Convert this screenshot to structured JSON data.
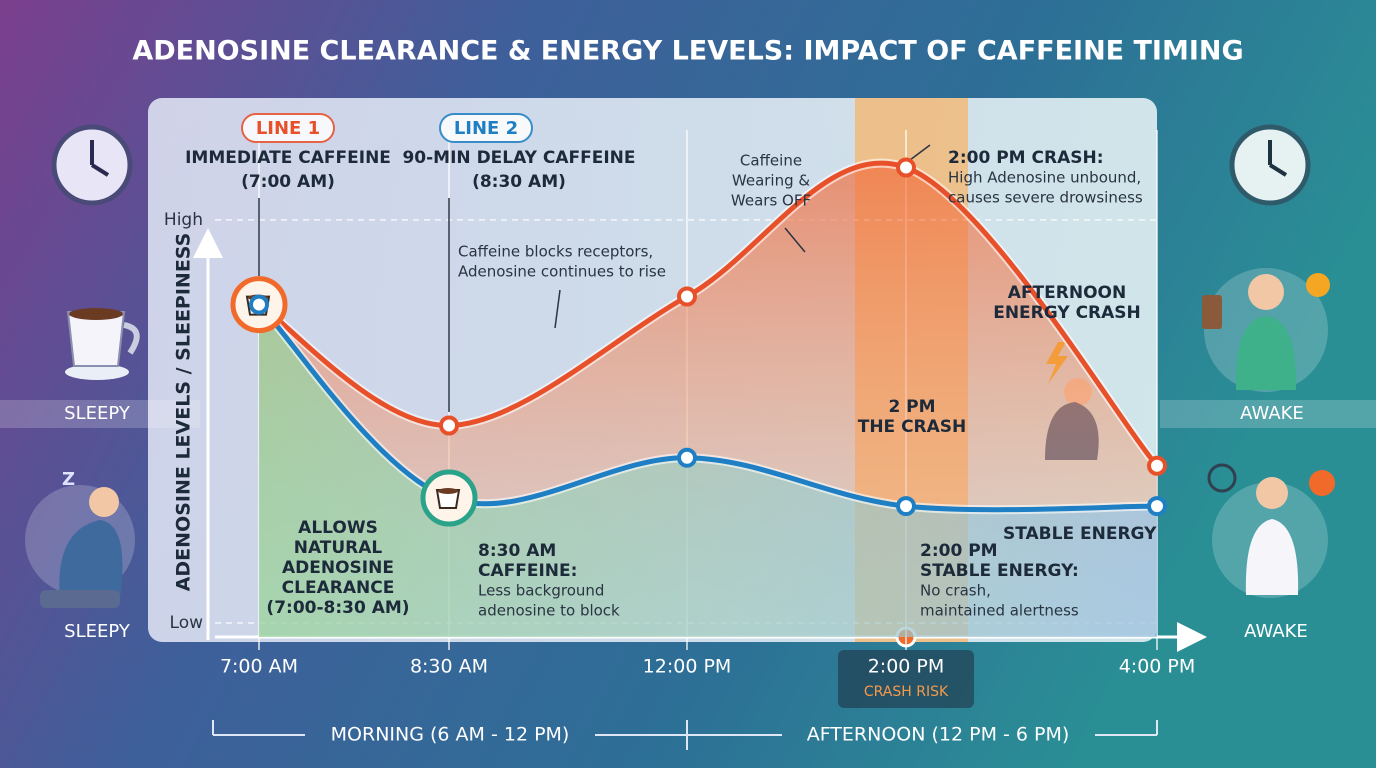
{
  "chart_data": {
    "type": "line",
    "title": "ADENOSINE CLEARANCE & ENERGY LEVELS: IMPACT OF CAFFEINE TIMING",
    "y_label": "ADENOSINE LEVELS / SLEEPINESS",
    "categories": [
      "7:00 AM",
      "8:30 AM",
      "12:00 PM",
      "2:00 PM",
      "4:00 PM"
    ],
    "category_note": "CRASH RISK",
    "ylim": [
      0,
      13
    ],
    "yticks": [
      {
        "value": 0,
        "label": "Low"
      },
      {
        "value": 10,
        "label": "High"
      }
    ],
    "grid": true,
    "series": [
      {
        "name": "LINE 1",
        "description": [
          "IMMEDIATE CAFFEINE",
          "(7:00 AM)"
        ],
        "color": "#e8502a",
        "values": [
          7.9,
          4.9,
          8.1,
          11.3,
          3.9
        ]
      },
      {
        "name": "LINE 2",
        "description": [
          "90-MIN DELAY CAFFEINE",
          "(8:30 AM)"
        ],
        "color": "#1f7fc4",
        "values": [
          7.9,
          3.1,
          4.1,
          2.9,
          2.9
        ]
      }
    ],
    "annotations": [
      {
        "body": [
          "Caffeine blocks receptors,",
          "Adenosine continues to rise"
        ]
      },
      {
        "body": [
          "Caffeine",
          "Wearing &",
          "Wears OFF"
        ]
      },
      {
        "heading": [
          "2:00 PM CRASH:"
        ],
        "body": [
          "High Adenosine unbound,",
          "causes severe drowsiness"
        ]
      },
      {
        "heading": [
          "AFTERNOON",
          "ENERGY CRASH"
        ]
      },
      {
        "heading": [
          "2 PM",
          "THE CRASH"
        ]
      },
      {
        "heading": [
          "STABLE ENERGY"
        ]
      },
      {
        "heading": [
          "2:00 PM",
          "STABLE ENERGY:"
        ],
        "body": [
          "No crash,",
          "maintained alertness"
        ]
      },
      {
        "heading": [
          "ALLOWS",
          "NATURAL",
          "ADENOSINE",
          "CLEARANCE",
          "(7:00-8:30 AM)"
        ]
      },
      {
        "heading": [
          "8:30 AM",
          "CAFFEINE:"
        ],
        "body": [
          "Less background",
          "adenosine to block"
        ]
      }
    ],
    "periods": [
      "MORNING  (6 AM - 12 PM)",
      "AFTERNOON (12 PM - 6 PM)"
    ],
    "side_labels": {
      "left": [
        "SLEEPY",
        "SLEEPY"
      ],
      "right": [
        "AWAKE",
        "AWAKE"
      ]
    }
  }
}
